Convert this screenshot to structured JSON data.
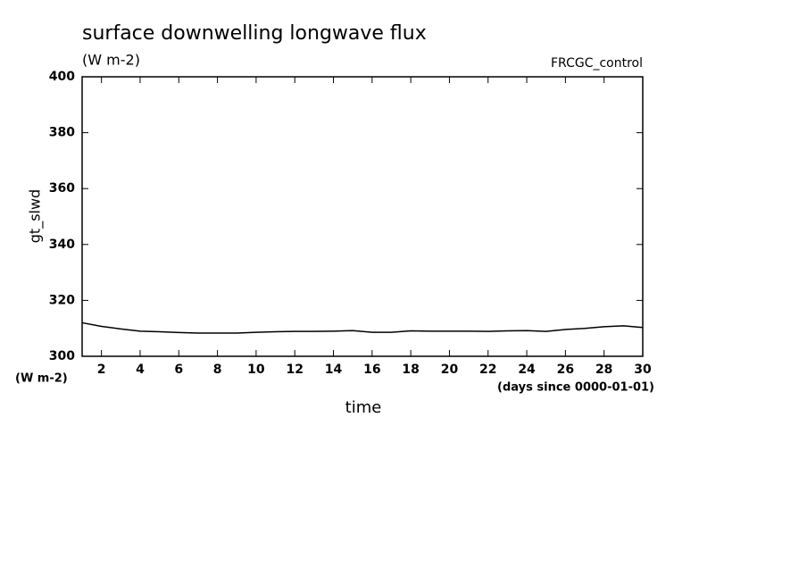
{
  "chart_data": {
    "type": "line",
    "title": "surface downwelling longwave flux",
    "subtitle": "(W m-2)",
    "run_label": "FRCGC_control",
    "y_label": "gt_slwd",
    "y_units": "(W m-2)",
    "x_label": "time",
    "x_units": "(days since 0000-01-01)",
    "x": [
      1,
      2,
      3,
      4,
      5,
      6,
      7,
      8,
      9,
      10,
      11,
      12,
      13,
      14,
      15,
      16,
      17,
      18,
      19,
      20,
      21,
      22,
      23,
      24,
      25,
      26,
      27,
      28,
      29,
      30
    ],
    "series": [
      {
        "name": "gt_slwd",
        "color": "#000000",
        "values": [
          312,
          310.7,
          309.8,
          309,
          308.8,
          308.5,
          308.3,
          308.3,
          308.3,
          308.6,
          308.8,
          308.9,
          308.9,
          309,
          309.2,
          308.6,
          308.6,
          309.1,
          309,
          309,
          309,
          308.9,
          309.1,
          309.2,
          308.9,
          309.6,
          310,
          310.6,
          310.9,
          310.3
        ]
      }
    ],
    "xlim": [
      1,
      30
    ],
    "ylim": [
      300,
      400
    ],
    "xticks": [
      2,
      4,
      6,
      8,
      10,
      12,
      14,
      16,
      18,
      20,
      22,
      24,
      26,
      28,
      30
    ],
    "yticks": [
      300,
      320,
      340,
      360,
      380,
      400
    ],
    "grid": false
  }
}
